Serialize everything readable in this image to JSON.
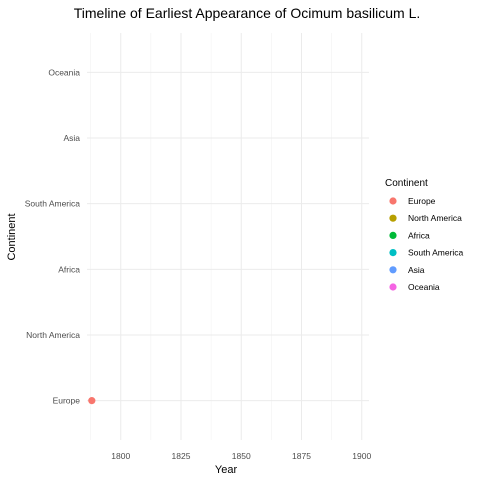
{
  "chart_data": {
    "type": "scatter",
    "title": "Timeline of Earliest Appearance of Ocimum basilicum L.",
    "xlabel": "Year",
    "ylabel": "Continent",
    "xlim": [
      1786,
      1903
    ],
    "x_ticks": [
      1800,
      1825,
      1850,
      1875,
      1900
    ],
    "categories": [
      "Europe",
      "North America",
      "Africa",
      "South America",
      "Asia",
      "Oceania"
    ],
    "grid": true,
    "legend_position": "right",
    "legend_title": "Continent",
    "series": [
      {
        "name": "Europe",
        "color": "#F8766D",
        "points": [
          {
            "x": 1788,
            "y": "Europe"
          }
        ]
      },
      {
        "name": "North America",
        "color": "#B79F00",
        "points": []
      },
      {
        "name": "Africa",
        "color": "#00BA38",
        "points": []
      },
      {
        "name": "South America",
        "color": "#00BFC4",
        "points": []
      },
      {
        "name": "Asia",
        "color": "#619CFF",
        "points": []
      },
      {
        "name": "Oceania",
        "color": "#F564E3",
        "points": []
      }
    ]
  }
}
